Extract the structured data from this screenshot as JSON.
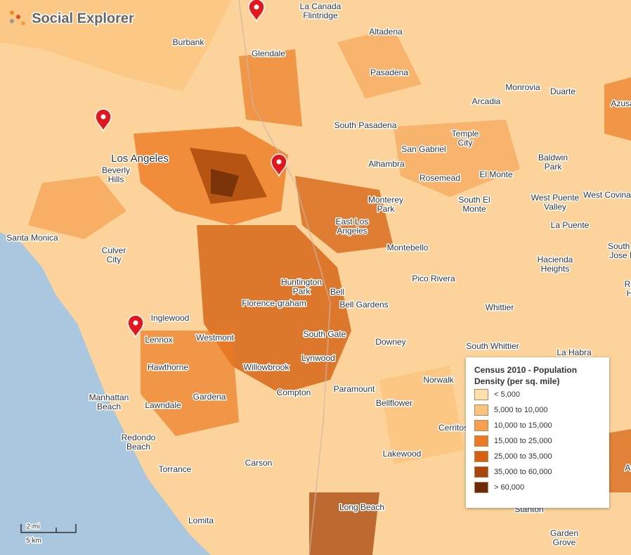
{
  "brand": "Social Explorer",
  "legend": {
    "title": [
      "Census 2010 - Population",
      "Density (per sq. mile)"
    ],
    "items": [
      {
        "label": "< 5,000",
        "color": "#fde0ab"
      },
      {
        "label": "5,000 to 10,000",
        "color": "#fbc47c"
      },
      {
        "label": "10,000 to 15,000",
        "color": "#f5a04e"
      },
      {
        "label": "15,000 to 25,000",
        "color": "#ec7a22"
      },
      {
        "label": "25,000 to 35,000",
        "color": "#d5600f"
      },
      {
        "label": "35,000 to 60,000",
        "color": "#a8460b"
      },
      {
        "label": "> 60,000",
        "color": "#6d2a06"
      }
    ]
  },
  "scale": {
    "miles": "2 mi",
    "km": "5 km"
  },
  "places": [
    [
      "Altadena"
    ],
    [
      "Burbank"
    ],
    [
      "Glendale"
    ],
    [
      "La Canada",
      "Flintridge"
    ],
    [
      "Pasadena"
    ],
    [
      "Monrovia"
    ],
    [
      "Duarte"
    ],
    [
      "Arcadia"
    ],
    [
      "Azusa"
    ],
    [
      "South Pasadena"
    ],
    [
      "Temple",
      "City"
    ],
    [
      "San Gabriel"
    ],
    [
      "Baldwin",
      "Park"
    ],
    [
      "Los Angeles"
    ],
    [
      "Beverly",
      "Hills"
    ],
    [
      "Alhambra"
    ],
    [
      "El Monte"
    ],
    [
      "Rosemead"
    ],
    [
      "West Puente",
      "Valley"
    ],
    [
      "West Covina"
    ],
    [
      "Monterey",
      "Park"
    ],
    [
      "South El",
      "Monte"
    ],
    [
      "Santa Monica"
    ],
    [
      "East Los",
      "Angeles"
    ],
    [
      "La Puente"
    ],
    [
      "Montebello"
    ],
    [
      "South San",
      "Jose Hills"
    ],
    [
      "Culver",
      "City"
    ],
    [
      "Hacienda",
      "Heights"
    ],
    [
      "Pico Rivera"
    ],
    [
      "Rowland",
      "Heights"
    ],
    [
      "Huntington",
      "Park"
    ],
    [
      "Bell"
    ],
    [
      "Florence-graham"
    ],
    [
      "Bell Gardens"
    ],
    [
      "Whittier"
    ],
    [
      "Inglewood"
    ],
    [
      "Lennox"
    ],
    [
      "Westmont"
    ],
    [
      "South Gate"
    ],
    [
      "Downey"
    ],
    [
      "South Whittier"
    ],
    [
      "La Habra"
    ],
    [
      "Hawthorne"
    ],
    [
      "Willowbrook"
    ],
    [
      "Lynwood"
    ],
    [
      "Norwalk"
    ],
    [
      "Paramount"
    ],
    [
      "Compton"
    ],
    [
      "Manhattan",
      "Beach"
    ],
    [
      "Gardena"
    ],
    [
      "Lawndale"
    ],
    [
      "Bellflower"
    ],
    [
      "Cerritos"
    ],
    [
      "Redondo",
      "Beach"
    ],
    [
      "Carson"
    ],
    [
      "Lakewood"
    ],
    [
      "Torrance"
    ],
    [
      "Long Beach"
    ],
    [
      "Lomita"
    ],
    [
      "Stanton"
    ],
    [
      "Garden",
      "Grove"
    ],
    [
      "Anaheim"
    ]
  ]
}
